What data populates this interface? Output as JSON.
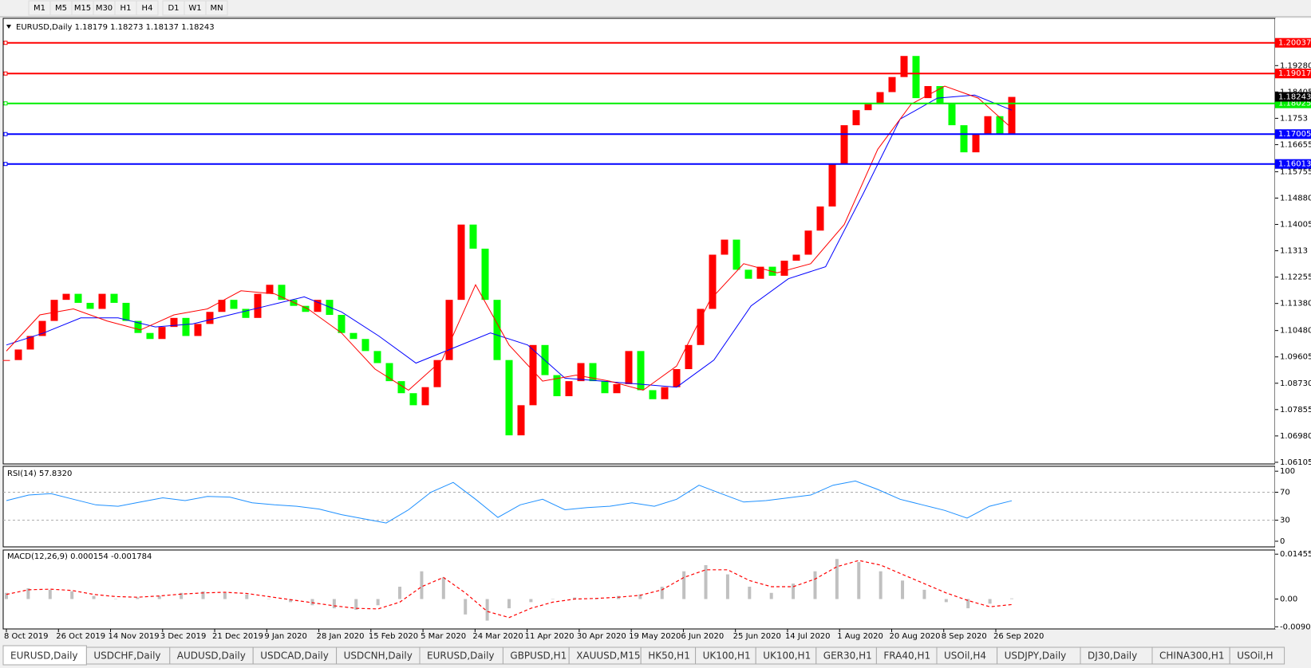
{
  "toolbar": {
    "timeframes": [
      "M1",
      "M5",
      "M15",
      "M30",
      "H1",
      "H4",
      "D1",
      "W1",
      "MN"
    ]
  },
  "chart": {
    "header": "EURUSD,Daily  1.18179 1.18273 1.18137 1.18243",
    "ylim": [
      1.0605,
      1.2085
    ],
    "yticks": [
      {
        "value": 1.1928,
        "label": "1.19280"
      },
      1.18405,
      1.1753,
      1.16655,
      1.15755,
      {
        "value": 1.1488,
        "label": "1.14880"
      },
      1.14005,
      1.1313,
      1.12255,
      {
        "value": 1.1138,
        "label": "1.11380"
      },
      {
        "value": 1.1048,
        "label": "1.10480"
      },
      1.09605,
      {
        "value": 1.0873,
        "label": "1.08730"
      },
      1.07855,
      {
        "value": 1.0698,
        "label": "1.06980"
      },
      1.06105
    ],
    "levels": [
      {
        "value": 1.20037,
        "color": "#ff0000"
      },
      {
        "value": 1.19017,
        "color": "#ff0000"
      },
      {
        "value": 1.18025,
        "color": "#00ee00"
      },
      {
        "value": 1.17005,
        "color": "#0000ff"
      },
      {
        "value": 1.16013,
        "color": "#0000ff"
      }
    ],
    "current_price": 1.18243,
    "up_color": "#ff0000",
    "down_color": "#00ff00",
    "closes": [
      1.095,
      1.0985,
      1.103,
      1.108,
      1.115,
      1.117,
      1.114,
      1.112,
      1.117,
      1.114,
      1.108,
      1.104,
      1.102,
      1.106,
      1.109,
      1.103,
      1.107,
      1.111,
      1.115,
      1.112,
      1.109,
      1.117,
      1.12,
      1.115,
      1.113,
      1.111,
      1.115,
      1.11,
      1.104,
      1.102,
      1.098,
      1.094,
      1.088,
      1.084,
      1.08,
      1.086,
      1.095,
      1.115,
      1.14,
      1.132,
      1.115,
      1.095,
      1.07,
      1.08,
      1.1,
      1.09,
      1.083,
      1.088,
      1.094,
      1.088,
      1.084,
      1.087,
      1.098,
      1.085,
      1.082,
      1.086,
      1.092,
      1.1,
      1.112,
      1.13,
      1.135,
      1.125,
      1.122,
      1.126,
      1.123,
      1.128,
      1.13,
      1.138,
      1.146,
      1.16,
      1.173,
      1.178,
      1.18,
      1.184,
      1.189,
      1.196,
      1.182,
      1.186,
      1.18,
      1.173,
      1.164,
      1.17,
      1.176,
      1.17,
      1.1824
    ],
    "ma_slow": {
      "color": "#0000ff",
      "values": [
        1.1,
        1.104,
        1.109,
        1.109,
        1.106,
        1.107,
        1.11,
        1.113,
        1.116,
        1.111,
        1.103,
        1.094,
        1.099,
        1.104,
        1.1,
        1.089,
        1.088,
        1.087,
        1.086,
        1.095,
        1.113,
        1.122,
        1.126,
        1.15,
        1.175,
        1.182,
        1.183,
        1.178
      ]
    },
    "ma_fast": {
      "color": "#ff0000",
      "values": [
        1.098,
        1.11,
        1.112,
        1.108,
        1.105,
        1.11,
        1.112,
        1.118,
        1.117,
        1.112,
        1.104,
        1.092,
        1.085,
        1.095,
        1.12,
        1.1,
        1.088,
        1.09,
        1.088,
        1.085,
        1.093,
        1.115,
        1.127,
        1.124,
        1.127,
        1.14,
        1.165,
        1.18,
        1.186,
        1.182,
        1.172
      ]
    },
    "dates": [
      "8 Oct 2019",
      "26 Oct 2019",
      "14 Nov 2019",
      "3 Dec 2019",
      "21 Dec 2019",
      "9 Jan 2020",
      "28 Jan 2020",
      "15 Feb 2020",
      "5 Mar 2020",
      "24 Mar 2020",
      "11 Apr 2020",
      "30 Apr 2020",
      "19 May 2020",
      "6 Jun 2020",
      "25 Jun 2020",
      "14 Jul 2020",
      "1 Aug 2020",
      "20 Aug 2020",
      "8 Sep 2020",
      "26 Sep 2020"
    ]
  },
  "rsi": {
    "header": "RSI(14) 57.8320",
    "ylim": [
      -8,
      107
    ],
    "ticks": [
      100,
      70,
      30,
      0
    ],
    "levels": [
      70,
      30
    ],
    "color": "#1e90ff",
    "values": [
      58,
      66,
      68,
      60,
      52,
      50,
      56,
      62,
      58,
      64,
      63,
      55,
      52,
      50,
      46,
      38,
      32,
      26,
      45,
      70,
      84,
      60,
      34,
      52,
      60,
      45,
      48,
      50,
      55,
      50,
      60,
      80,
      68,
      56,
      58,
      62,
      66,
      80,
      86,
      74,
      60,
      52,
      44,
      33,
      50,
      57.8
    ]
  },
  "macd": {
    "header": "MACD(12,26,9) 0.000154 -0.001784",
    "ylim": [
      -0.0097,
      0.0159
    ],
    "ticks": [
      0.014556,
      {
        "value": 0,
        "label": "0.00"
      },
      -0.009001
    ],
    "signal_color": "#ff0000",
    "histogram": [
      0.002,
      0.0035,
      0.003,
      0.0025,
      0.001,
      0,
      0.0005,
      0.001,
      0.002,
      0.0025,
      0.002,
      0.0015,
      0,
      -0.001,
      -0.002,
      -0.003,
      -0.0035,
      -0.002,
      0.004,
      0.009,
      0.007,
      -0.005,
      -0.007,
      -0.003,
      -0.001,
      0,
      0.0005,
      0,
      0.001,
      0.0015,
      0.004,
      0.009,
      0.011,
      0.008,
      0.004,
      0.002,
      0.005,
      0.009,
      0.013,
      0.012,
      0.009,
      0.006,
      0.003,
      -0.001,
      -0.003,
      -0.0015,
      0.0002
    ],
    "signal": [
      0.0015,
      0.003,
      0.0032,
      0.0028,
      0.0015,
      0.0008,
      0.0006,
      0.001,
      0.0016,
      0.002,
      0.0022,
      0.0018,
      0.0008,
      -0.0002,
      -0.0012,
      -0.0022,
      -0.003,
      -0.0032,
      -0.001,
      0.004,
      0.007,
      0.002,
      -0.004,
      -0.006,
      -0.003,
      -0.001,
      0,
      0.0002,
      0.0006,
      0.0012,
      0.003,
      0.007,
      0.0095,
      0.0095,
      0.006,
      0.004,
      0.004,
      0.0065,
      0.0105,
      0.0125,
      0.011,
      0.008,
      0.005,
      0.002,
      -0.0005,
      -0.0025,
      -0.0018
    ]
  },
  "tabs": {
    "active": "EURUSD,Daily",
    "items": [
      "USDCHF,Daily",
      "AUDUSD,Daily",
      "USDCAD,Daily",
      "USDCNH,Daily",
      "EURUSD,Daily",
      "GBPUSD,H1",
      "XAUUSD,M15",
      "HK50,H1",
      "UK100,H1",
      "UK100,H1",
      "GER30,H1",
      "FRA40,H1",
      "USOil,H4",
      "USDJPY,Daily",
      "DJ30,Daily",
      "CHINA300,H1",
      "USOil,H"
    ]
  }
}
